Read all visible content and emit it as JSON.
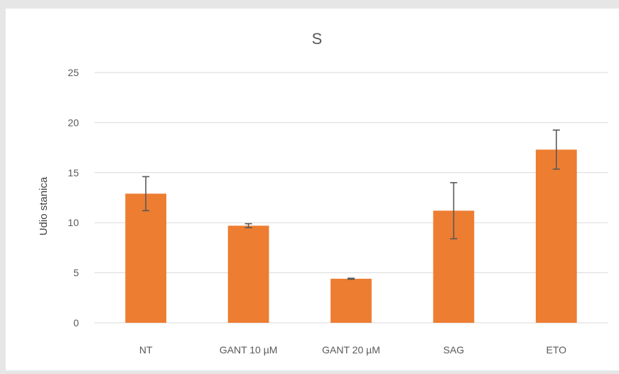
{
  "chart_data": {
    "type": "bar",
    "title": "S",
    "xlabel": "",
    "ylabel": "Udio stanica",
    "categories": [
      "NT",
      "GANT 10 µM",
      "GANT 20 µM",
      "SAG",
      "ETO"
    ],
    "series": [
      {
        "values": [
          12.9,
          9.7,
          4.4,
          11.2,
          17.3
        ],
        "error": [
          1.7,
          0.2,
          0.05,
          2.8,
          1.95
        ]
      }
    ],
    "ylim": [
      0,
      25
    ],
    "yticks": [
      0,
      5,
      10,
      15,
      20,
      25
    ],
    "grid": true,
    "legend": "none",
    "bar_color": "#ed7d31",
    "error_bar_color": "#595959",
    "gridline_color": "#d9d9d9"
  }
}
